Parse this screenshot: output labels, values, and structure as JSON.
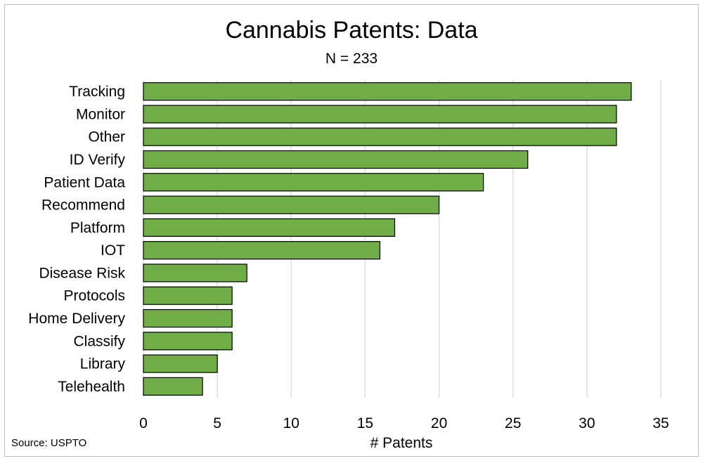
{
  "chart_data": {
    "type": "bar",
    "orientation": "horizontal",
    "title": "Cannabis Patents: Data",
    "subtitle": "N = 233",
    "xlabel": "# Patents",
    "ylabel": "",
    "categories": [
      "Tracking",
      "Monitor",
      "Other",
      "ID Verify",
      "Patient Data",
      "Recommend",
      "Platform",
      "IOT",
      "Disease Risk",
      "Protocols",
      "Home Delivery",
      "Classify",
      "Library",
      "Telehealth"
    ],
    "values": [
      33,
      32,
      32,
      26,
      23,
      20,
      17,
      16,
      7,
      6,
      6,
      6,
      5,
      4
    ],
    "xlim": [
      0,
      35
    ],
    "xticks": [
      "0",
      "5",
      "10",
      "15",
      "20",
      "25",
      "30",
      "35"
    ],
    "grid": "vertical",
    "legend": "none",
    "source": "Source: USPTO",
    "colors": {
      "bar": "#70ad47",
      "bar_border": "#000000",
      "grid": "#d9d9d9"
    }
  }
}
